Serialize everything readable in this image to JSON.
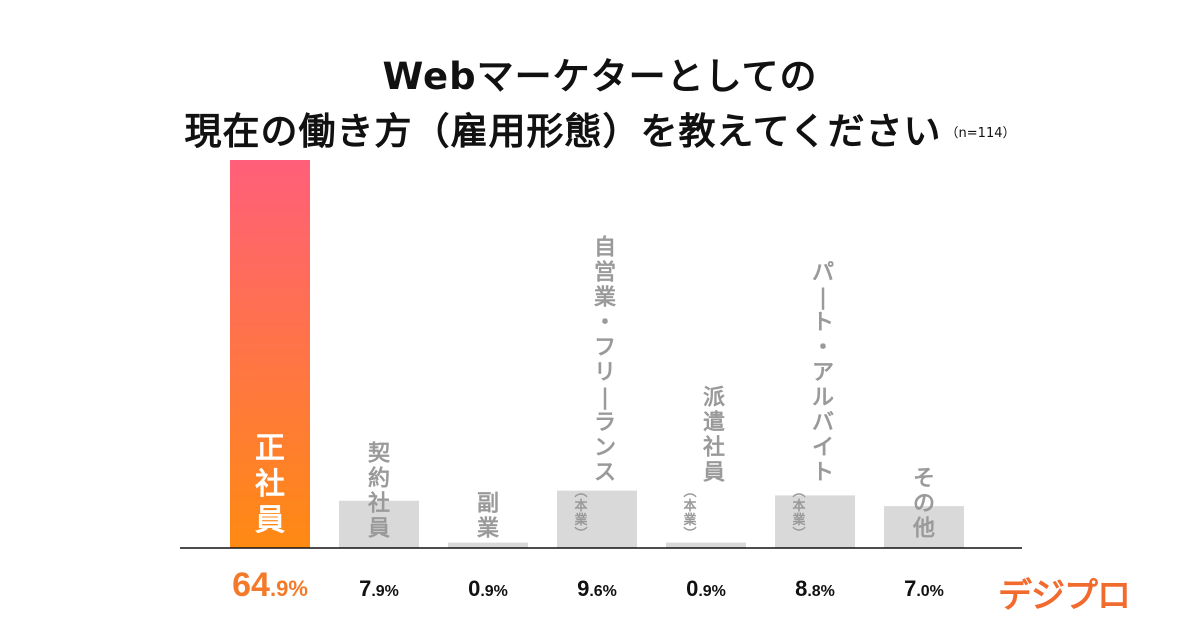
{
  "title_line1": "Webマーケターとしての",
  "title_line2": "現在の働き方（雇用形態）を教えてください",
  "sample_size": "（n=114）",
  "logo_text": "デジプロ",
  "colors": {
    "highlight_top": "#ff5f7a",
    "highlight_bottom": "#ff8a12",
    "bar_gray": "#d9d9d9",
    "label_gray": "#9a9a9a",
    "highlight_value": "#f37a2a"
  },
  "chart_data": {
    "type": "bar",
    "title": "Webマーケターとしての 現在の働き方（雇用形態）を教えてください",
    "categories": [
      {
        "label": "正社員",
        "sub": ""
      },
      {
        "label": "契約社員",
        "sub": ""
      },
      {
        "label": "副業",
        "sub": ""
      },
      {
        "label": "自営業・フリーランス",
        "sub": "（本業）"
      },
      {
        "label": "派遣社員",
        "sub": "（本業）"
      },
      {
        "label": "パート・アルバイト",
        "sub": "（本業）"
      },
      {
        "label": "その他",
        "sub": ""
      }
    ],
    "values": [
      64.9,
      7.9,
      0.9,
      9.6,
      0.9,
      8.8,
      7.0
    ],
    "value_labels": [
      {
        "int": "64",
        "dec": ".9",
        "unit": "%"
      },
      {
        "int": "7",
        "dec": ".9",
        "unit": "%"
      },
      {
        "int": "0",
        "dec": ".9",
        "unit": "%"
      },
      {
        "int": "9",
        "dec": ".6",
        "unit": "%"
      },
      {
        "int": "0",
        "dec": ".9",
        "unit": "%"
      },
      {
        "int": "8",
        "dec": ".8",
        "unit": "%"
      },
      {
        "int": "7",
        "dec": ".0",
        "unit": "%"
      }
    ],
    "highlight_index": 0,
    "ylim": [
      0,
      64.9
    ],
    "grid": false,
    "legend": "none",
    "xlabel": "",
    "ylabel": ""
  }
}
